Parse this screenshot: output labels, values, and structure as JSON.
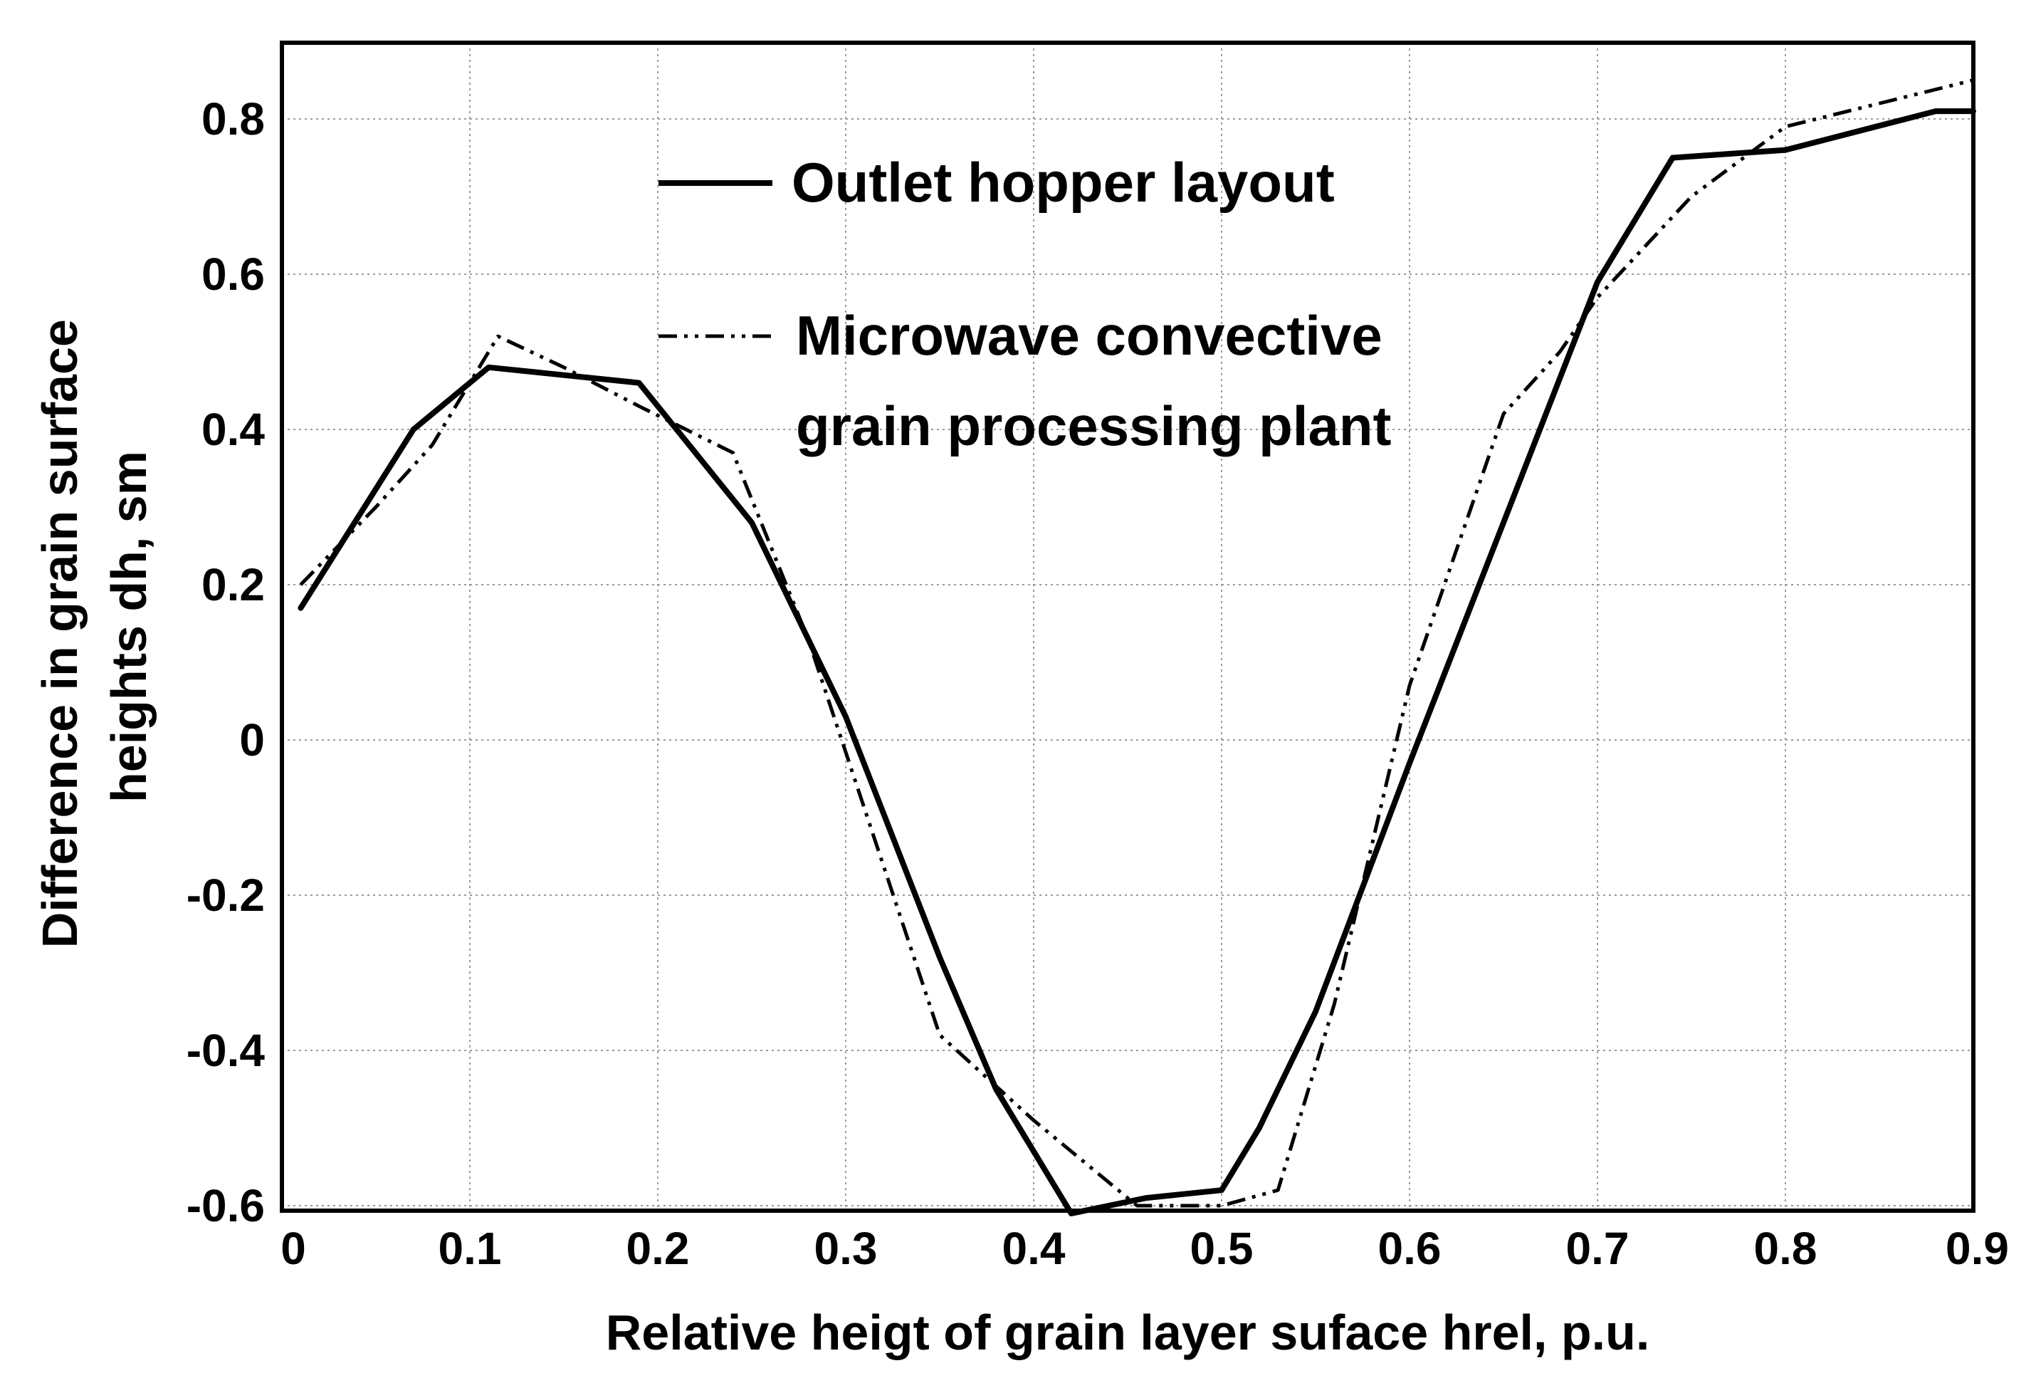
{
  "chart_data": {
    "type": "line",
    "xlabel": "Relative heigt of grain layer suface hrel, p.u.",
    "ylabel_lines": [
      "Difference in grain surface",
      "heights dh, sm"
    ],
    "xlim": [
      0,
      0.9
    ],
    "ylim": [
      -0.6,
      0.9
    ],
    "x_ticks": [
      0,
      0.1,
      0.2,
      0.3,
      0.4,
      0.5,
      0.6,
      0.7,
      0.8,
      0.9
    ],
    "x_tick_labels": [
      "0",
      "0.1",
      "0.2",
      "0.3",
      "0.4",
      "0.5",
      "0.6",
      "0.7",
      "0.8",
      "0.9"
    ],
    "y_ticks": [
      -0.6,
      -0.4,
      -0.2,
      0,
      0.2,
      0.4,
      0.6,
      0.8
    ],
    "y_tick_labels": [
      "-0.6",
      "-0.4",
      "-0.2",
      "0",
      "0.2",
      "0.4",
      "0.6",
      "0.8"
    ],
    "grid": true,
    "legend_position": "top-center",
    "series": [
      {
        "name": "Outlet hopper layout",
        "legend_lines": [
          "Outlet hopper layout"
        ],
        "style": "solid",
        "color": "#000000",
        "x": [
          0.01,
          0.07,
          0.11,
          0.19,
          0.22,
          0.25,
          0.3,
          0.35,
          0.38,
          0.42,
          0.46,
          0.5,
          0.52,
          0.55,
          0.6,
          0.65,
          0.7,
          0.74,
          0.8,
          0.88,
          0.9
        ],
        "y": [
          0.17,
          0.4,
          0.48,
          0.46,
          0.37,
          0.28,
          0.03,
          -0.28,
          -0.45,
          -0.61,
          -0.59,
          -0.58,
          -0.5,
          -0.35,
          -0.03,
          0.28,
          0.59,
          0.75,
          0.76,
          0.81,
          0.81
        ]
      },
      {
        "name": "Microwave convective grain processing plant",
        "legend_lines": [
          "Microwave convective",
          "grain processing plant"
        ],
        "style": "dash-dot-dot",
        "color": "#000000",
        "x": [
          0.01,
          0.05,
          0.08,
          0.115,
          0.15,
          0.19,
          0.24,
          0.28,
          0.35,
          0.4,
          0.455,
          0.5,
          0.53,
          0.56,
          0.6,
          0.65,
          0.68,
          0.7,
          0.75,
          0.8,
          0.9
        ],
        "y": [
          0.2,
          0.3,
          0.38,
          0.52,
          0.48,
          0.43,
          0.37,
          0.13,
          -0.38,
          -0.49,
          -0.6,
          -0.6,
          -0.58,
          -0.34,
          0.07,
          0.42,
          0.5,
          0.57,
          0.7,
          0.79,
          0.85
        ]
      }
    ]
  }
}
